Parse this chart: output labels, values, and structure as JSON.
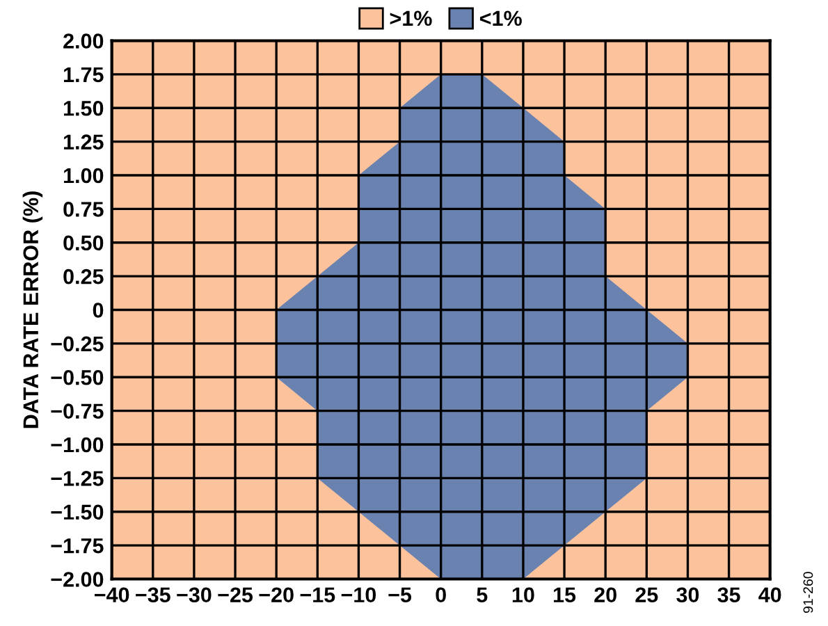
{
  "chart_data": {
    "type": "area",
    "ylabel": "DATA RATE ERROR (%)",
    "series": [
      {
        "name": "<1%",
        "color": "#6a82b0",
        "x": [
          0,
          5,
          15,
          15,
          20,
          20,
          30,
          30,
          25,
          25,
          10,
          0,
          -15,
          -15,
          -20,
          -20,
          -10,
          -10,
          -5,
          -5
        ],
        "values": [
          1.75,
          1.75,
          1.25,
          1.0,
          0.75,
          0.25,
          -0.25,
          -0.5,
          -0.75,
          -1.25,
          -2,
          -2,
          -1.25,
          -0.75,
          -0.5,
          0,
          0.5,
          1.0,
          1.25,
          1.5
        ]
      }
    ],
    "xlim": [
      -40,
      40
    ],
    "xticks": [
      {
        "value": -40,
        "label": "−40"
      },
      {
        "value": -35,
        "label": "−35"
      },
      {
        "value": -30,
        "label": "−30"
      },
      {
        "value": -25,
        "label": "−25"
      },
      {
        "value": -20,
        "label": "−20"
      },
      {
        "value": -15,
        "label": "−15"
      },
      {
        "value": -10,
        "label": "−10"
      },
      {
        "value": -5,
        "label": "−5"
      },
      0,
      5,
      10,
      15,
      20,
      25,
      30,
      35,
      40
    ],
    "ylim": [
      -2,
      2
    ],
    "yticks": [
      {
        "value": -2,
        "label": "−2.00"
      },
      {
        "value": -1.75,
        "label": "−1.75"
      },
      {
        "value": -1.5,
        "label": "−1.50"
      },
      {
        "value": -1.25,
        "label": "−1.25"
      },
      {
        "value": -1,
        "label": "−1.00"
      },
      {
        "value": -0.75,
        "label": "−0.75"
      },
      {
        "value": -0.5,
        "label": "−0.50"
      },
      {
        "value": -0.25,
        "label": "−0.25"
      },
      0,
      {
        "value": 0.25,
        "label": "0.25"
      },
      {
        "value": 0.5,
        "label": "0.50"
      },
      {
        "value": 0.75,
        "label": "0.75"
      },
      {
        "value": 1,
        "label": "1.00"
      },
      {
        "value": 1.25,
        "label": "1.25"
      },
      {
        "value": 1.5,
        "label": "1.50"
      },
      {
        "value": 1.75,
        "label": "1.75"
      },
      {
        "value": 2,
        "label": "2.00"
      }
    ],
    "bands": [
      {
        "axis": "y",
        "from": -2,
        "to": 2,
        "label": ">1%",
        "color": "#fcc29c"
      }
    ],
    "grid": true,
    "legend": "top",
    "annotations": [
      "91-260"
    ]
  }
}
